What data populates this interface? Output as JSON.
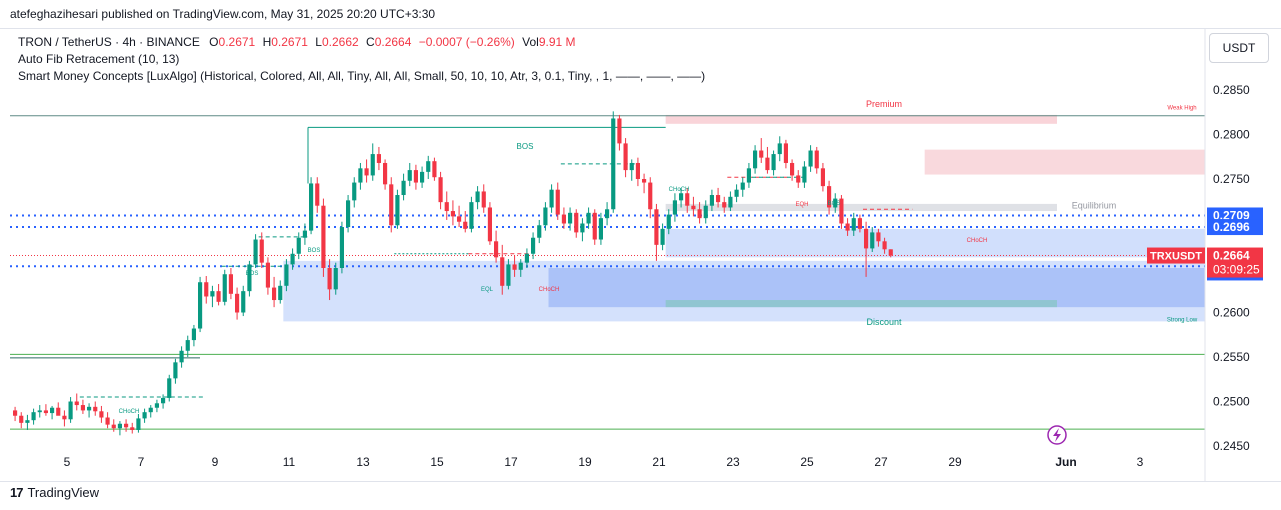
{
  "header": {
    "publisher_line": "atefeghazihesari published on TradingView.com, May 31, 2025 20:20 UTC+3:30"
  },
  "legend": {
    "symbol": "TRON / TetherUS · 4h · BINANCE",
    "o_label": "O",
    "o": "0.2671",
    "h_label": "H",
    "h": "0.2671",
    "l_label": "L",
    "l": "0.2662",
    "c_label": "C",
    "c": "0.2664",
    "change": "−0.0007 (−0.26%)",
    "vol_label": "Vol",
    "vol": "9.91 M",
    "indicator1": "Auto Fib Retracement (10, 13)",
    "indicator2": "Smart Money Concepts [LuxAlgo] (Historical, Colored, All, All, Tiny, All, All, Small, 50, 10, 10, Atr, 3, 0.1, Tiny, , 1, ——, ——, ——)"
  },
  "currency_button": "USDT",
  "footer": {
    "brand": "TradingView",
    "logo": "17"
  },
  "colors": {
    "up": "#089981",
    "down": "#f23645",
    "blue": "#2962ff",
    "premium": "#f7c9cf",
    "discount": "#c6d7fb"
  },
  "chart_data": {
    "type": "candlestick",
    "symbol": "TRXUSDT",
    "ylim": [
      0.2445,
      0.2865
    ],
    "y_ticks": [
      "0.2850",
      "0.2800",
      "0.2750",
      "0.2650",
      "0.2600",
      "0.2550",
      "0.2500",
      "0.2450"
    ],
    "x_ticks": [
      "5",
      "7",
      "9",
      "11",
      "13",
      "15",
      "17",
      "19",
      "21",
      "23",
      "25",
      "27",
      "29",
      "Jun",
      "3"
    ],
    "x_start": "May 3",
    "x_end": "June 4",
    "grid": false,
    "price_labels": [
      {
        "value": "0.2709",
        "color": "#2962ff"
      },
      {
        "value": "0.2696",
        "color": "#2962ff"
      },
      {
        "value": "0.2652",
        "color": "#2962ff"
      },
      {
        "value": "0.2645",
        "color": "#2962ff"
      }
    ],
    "last_price": {
      "symbol": "TRXUSDT",
      "value": "0.2664",
      "countdown": "03:09:25",
      "color": "#f23645"
    },
    "zones": {
      "premium": "Premium",
      "equilibrium": "Equilibrium",
      "discount": "Discount",
      "weak_high": "Weak High",
      "strong_low": "Strong Low"
    },
    "structure_labels": [
      {
        "text": "BOS",
        "at": "May 13 04:00",
        "y": 0.2815
      },
      {
        "text": "BOS",
        "at": "May 9 16:00",
        "y": 0.2656
      },
      {
        "text": "BOS",
        "at": "May 11 16:00",
        "y": 0.2694
      },
      {
        "text": "CHoCH",
        "at": "May 6 12:00",
        "y": 0.2509
      },
      {
        "text": "CHoCH",
        "at": "May 21 12:00",
        "y": 0.2771
      },
      {
        "text": "EQH",
        "at": "May 24 16:00",
        "y": 0.2756
      },
      {
        "text": "BOS",
        "at": "May 25 16:00",
        "y": 0.2756
      },
      {
        "text": "EQL",
        "at": "May 16 04:00",
        "y": 0.2666
      },
      {
        "text": "CHoCH",
        "at": "May 18 04:00",
        "y": 0.2666
      },
      {
        "text": "CHoCH",
        "at": "May 29 16:00",
        "y": 0.2719
      }
    ],
    "candles": [
      [
        0.249,
        0.2494,
        0.2478,
        0.2484
      ],
      [
        0.2484,
        0.2488,
        0.247,
        0.2476
      ],
      [
        0.2476,
        0.2485,
        0.2468,
        0.2479
      ],
      [
        0.2479,
        0.2492,
        0.2474,
        0.2488
      ],
      [
        0.2488,
        0.2496,
        0.2482,
        0.249
      ],
      [
        0.249,
        0.2497,
        0.2484,
        0.2487
      ],
      [
        0.2487,
        0.2495,
        0.248,
        0.2493
      ],
      [
        0.2493,
        0.2499,
        0.2486,
        0.2484
      ],
      [
        0.2484,
        0.249,
        0.2472,
        0.248
      ],
      [
        0.248,
        0.2505,
        0.2476,
        0.25
      ],
      [
        0.25,
        0.2509,
        0.249,
        0.2496
      ],
      [
        0.2496,
        0.2502,
        0.2486,
        0.249
      ],
      [
        0.249,
        0.2498,
        0.2482,
        0.2494
      ],
      [
        0.2494,
        0.25,
        0.2484,
        0.2489
      ],
      [
        0.2489,
        0.2495,
        0.2476,
        0.2482
      ],
      [
        0.2482,
        0.2488,
        0.247,
        0.2474
      ],
      [
        0.2474,
        0.248,
        0.2466,
        0.247
      ],
      [
        0.247,
        0.2478,
        0.2462,
        0.2475
      ],
      [
        0.2475,
        0.248,
        0.2466,
        0.2471
      ],
      [
        0.2471,
        0.2476,
        0.2464,
        0.2468
      ],
      [
        0.2468,
        0.2486,
        0.2465,
        0.2481
      ],
      [
        0.2481,
        0.2492,
        0.2476,
        0.2488
      ],
      [
        0.2488,
        0.2496,
        0.2482,
        0.2493
      ],
      [
        0.2493,
        0.2502,
        0.2488,
        0.2498
      ],
      [
        0.2498,
        0.2508,
        0.2492,
        0.2504
      ],
      [
        0.2504,
        0.253,
        0.25,
        0.2526
      ],
      [
        0.2526,
        0.2548,
        0.252,
        0.2544
      ],
      [
        0.2544,
        0.2562,
        0.2538,
        0.2557
      ],
      [
        0.2557,
        0.2574,
        0.255,
        0.2569
      ],
      [
        0.2569,
        0.2586,
        0.2562,
        0.2582
      ],
      [
        0.2582,
        0.264,
        0.2578,
        0.2634
      ],
      [
        0.2634,
        0.2641,
        0.261,
        0.2618
      ],
      [
        0.2618,
        0.263,
        0.2606,
        0.2624
      ],
      [
        0.2624,
        0.2632,
        0.2608,
        0.2612
      ],
      [
        0.2612,
        0.2648,
        0.2608,
        0.2643
      ],
      [
        0.2643,
        0.265,
        0.2615,
        0.2621
      ],
      [
        0.2621,
        0.2628,
        0.2592,
        0.26
      ],
      [
        0.26,
        0.263,
        0.2596,
        0.2624
      ],
      [
        0.2624,
        0.2658,
        0.2618,
        0.2654
      ],
      [
        0.2654,
        0.2688,
        0.265,
        0.2682
      ],
      [
        0.2682,
        0.269,
        0.265,
        0.2656
      ],
      [
        0.2656,
        0.2662,
        0.262,
        0.2628
      ],
      [
        0.2628,
        0.264,
        0.2606,
        0.2614
      ],
      [
        0.2614,
        0.2636,
        0.261,
        0.263
      ],
      [
        0.263,
        0.266,
        0.2624,
        0.2654
      ],
      [
        0.2654,
        0.2672,
        0.2648,
        0.2666
      ],
      [
        0.2666,
        0.269,
        0.266,
        0.2684
      ],
      [
        0.2684,
        0.27,
        0.2676,
        0.2692
      ],
      [
        0.2692,
        0.2752,
        0.2688,
        0.2745
      ],
      [
        0.2745,
        0.2752,
        0.2712,
        0.272
      ],
      [
        0.272,
        0.2728,
        0.264,
        0.265
      ],
      [
        0.265,
        0.266,
        0.2614,
        0.2626
      ],
      [
        0.2626,
        0.2656,
        0.262,
        0.265
      ],
      [
        0.265,
        0.2702,
        0.2644,
        0.2696
      ],
      [
        0.2696,
        0.2732,
        0.269,
        0.2726
      ],
      [
        0.2726,
        0.2752,
        0.2718,
        0.2746
      ],
      [
        0.2746,
        0.2768,
        0.2738,
        0.2762
      ],
      [
        0.2762,
        0.2772,
        0.2746,
        0.2754
      ],
      [
        0.2754,
        0.279,
        0.2748,
        0.2778
      ],
      [
        0.2778,
        0.2786,
        0.276,
        0.2768
      ],
      [
        0.2768,
        0.2772,
        0.2738,
        0.2744
      ],
      [
        0.2744,
        0.2752,
        0.269,
        0.2698
      ],
      [
        0.2698,
        0.2738,
        0.2694,
        0.2732
      ],
      [
        0.2732,
        0.2756,
        0.2726,
        0.2748
      ],
      [
        0.2748,
        0.2768,
        0.2742,
        0.276
      ],
      [
        0.276,
        0.2766,
        0.2738,
        0.2746
      ],
      [
        0.2746,
        0.2764,
        0.274,
        0.2758
      ],
      [
        0.2758,
        0.2776,
        0.275,
        0.277
      ],
      [
        0.277,
        0.2774,
        0.2748,
        0.2752
      ],
      [
        0.2752,
        0.2758,
        0.2716,
        0.2724
      ],
      [
        0.2724,
        0.2736,
        0.2704,
        0.2714
      ],
      [
        0.2714,
        0.2726,
        0.2698,
        0.2708
      ],
      [
        0.2708,
        0.272,
        0.2696,
        0.2702
      ],
      [
        0.2702,
        0.2714,
        0.269,
        0.2694
      ],
      [
        0.2694,
        0.273,
        0.269,
        0.2724
      ],
      [
        0.2724,
        0.2742,
        0.2716,
        0.2736
      ],
      [
        0.2736,
        0.2744,
        0.2712,
        0.2718
      ],
      [
        0.2718,
        0.2724,
        0.2676,
        0.268
      ],
      [
        0.268,
        0.2692,
        0.2656,
        0.2662
      ],
      [
        0.2662,
        0.2676,
        0.262,
        0.263
      ],
      [
        0.263,
        0.266,
        0.2626,
        0.2654
      ],
      [
        0.2654,
        0.2664,
        0.264,
        0.2648
      ],
      [
        0.2648,
        0.266,
        0.264,
        0.2656
      ],
      [
        0.2656,
        0.2672,
        0.265,
        0.2666
      ],
      [
        0.2666,
        0.269,
        0.266,
        0.2684
      ],
      [
        0.2684,
        0.2704,
        0.2678,
        0.2698
      ],
      [
        0.2698,
        0.2724,
        0.2692,
        0.2718
      ],
      [
        0.2718,
        0.2744,
        0.2712,
        0.2738
      ],
      [
        0.2738,
        0.2746,
        0.2704,
        0.271
      ],
      [
        0.271,
        0.2718,
        0.2694,
        0.27
      ],
      [
        0.27,
        0.2718,
        0.2692,
        0.2712
      ],
      [
        0.2712,
        0.2716,
        0.2684,
        0.269
      ],
      [
        0.269,
        0.2706,
        0.268,
        0.27
      ],
      [
        0.27,
        0.2718,
        0.2694,
        0.2712
      ],
      [
        0.2712,
        0.2716,
        0.2676,
        0.2682
      ],
      [
        0.2682,
        0.2712,
        0.2676,
        0.2706
      ],
      [
        0.2706,
        0.2724,
        0.2698,
        0.2716
      ],
      [
        0.2716,
        0.2826,
        0.2712,
        0.2818
      ],
      [
        0.2818,
        0.2822,
        0.2782,
        0.279
      ],
      [
        0.279,
        0.2796,
        0.2752,
        0.276
      ],
      [
        0.276,
        0.2772,
        0.2748,
        0.2768
      ],
      [
        0.2768,
        0.2774,
        0.2742,
        0.275
      ],
      [
        0.275,
        0.2756,
        0.2734,
        0.2746
      ],
      [
        0.2746,
        0.2752,
        0.2706,
        0.2716
      ],
      [
        0.2716,
        0.2722,
        0.2658,
        0.2676
      ],
      [
        0.2676,
        0.27,
        0.267,
        0.2694
      ],
      [
        0.2694,
        0.2716,
        0.2688,
        0.271
      ],
      [
        0.271,
        0.2734,
        0.2702,
        0.2726
      ],
      [
        0.2726,
        0.274,
        0.2718,
        0.2734
      ],
      [
        0.2734,
        0.274,
        0.2712,
        0.272
      ],
      [
        0.272,
        0.273,
        0.2708,
        0.2716
      ],
      [
        0.2716,
        0.2724,
        0.27,
        0.2706
      ],
      [
        0.2706,
        0.2726,
        0.27,
        0.272
      ],
      [
        0.272,
        0.2738,
        0.2714,
        0.2732
      ],
      [
        0.2732,
        0.274,
        0.2718,
        0.2724
      ],
      [
        0.2724,
        0.273,
        0.2712,
        0.2718
      ],
      [
        0.2718,
        0.2736,
        0.2714,
        0.273
      ],
      [
        0.273,
        0.2744,
        0.2724,
        0.2738
      ],
      [
        0.2738,
        0.2752,
        0.273,
        0.2746
      ],
      [
        0.2746,
        0.2768,
        0.274,
        0.2762
      ],
      [
        0.2762,
        0.2788,
        0.2756,
        0.2782
      ],
      [
        0.2782,
        0.2796,
        0.2768,
        0.2774
      ],
      [
        0.2774,
        0.2786,
        0.2756,
        0.276
      ],
      [
        0.276,
        0.2782,
        0.2754,
        0.2778
      ],
      [
        0.2778,
        0.2798,
        0.277,
        0.279
      ],
      [
        0.279,
        0.2794,
        0.2762,
        0.2768
      ],
      [
        0.2768,
        0.2772,
        0.2748,
        0.2754
      ],
      [
        0.2754,
        0.276,
        0.274,
        0.2746
      ],
      [
        0.2746,
        0.277,
        0.274,
        0.2764
      ],
      [
        0.2764,
        0.2788,
        0.2758,
        0.2782
      ],
      [
        0.2782,
        0.2786,
        0.2756,
        0.2762
      ],
      [
        0.2762,
        0.2768,
        0.2736,
        0.2742
      ],
      [
        0.2742,
        0.2748,
        0.271,
        0.2718
      ],
      [
        0.2718,
        0.2734,
        0.2712,
        0.2728
      ],
      [
        0.2728,
        0.2732,
        0.2694,
        0.27
      ],
      [
        0.27,
        0.2706,
        0.2686,
        0.2692
      ],
      [
        0.2692,
        0.2712,
        0.2686,
        0.2706
      ],
      [
        0.2706,
        0.271,
        0.269,
        0.2694
      ],
      [
        0.2694,
        0.2702,
        0.264,
        0.2672
      ],
      [
        0.2672,
        0.2696,
        0.2668,
        0.269
      ],
      [
        0.269,
        0.2694,
        0.2674,
        0.268
      ],
      [
        0.268,
        0.2684,
        0.2666,
        0.2671
      ],
      [
        0.2671,
        0.2671,
        0.2662,
        0.2664
      ]
    ]
  }
}
